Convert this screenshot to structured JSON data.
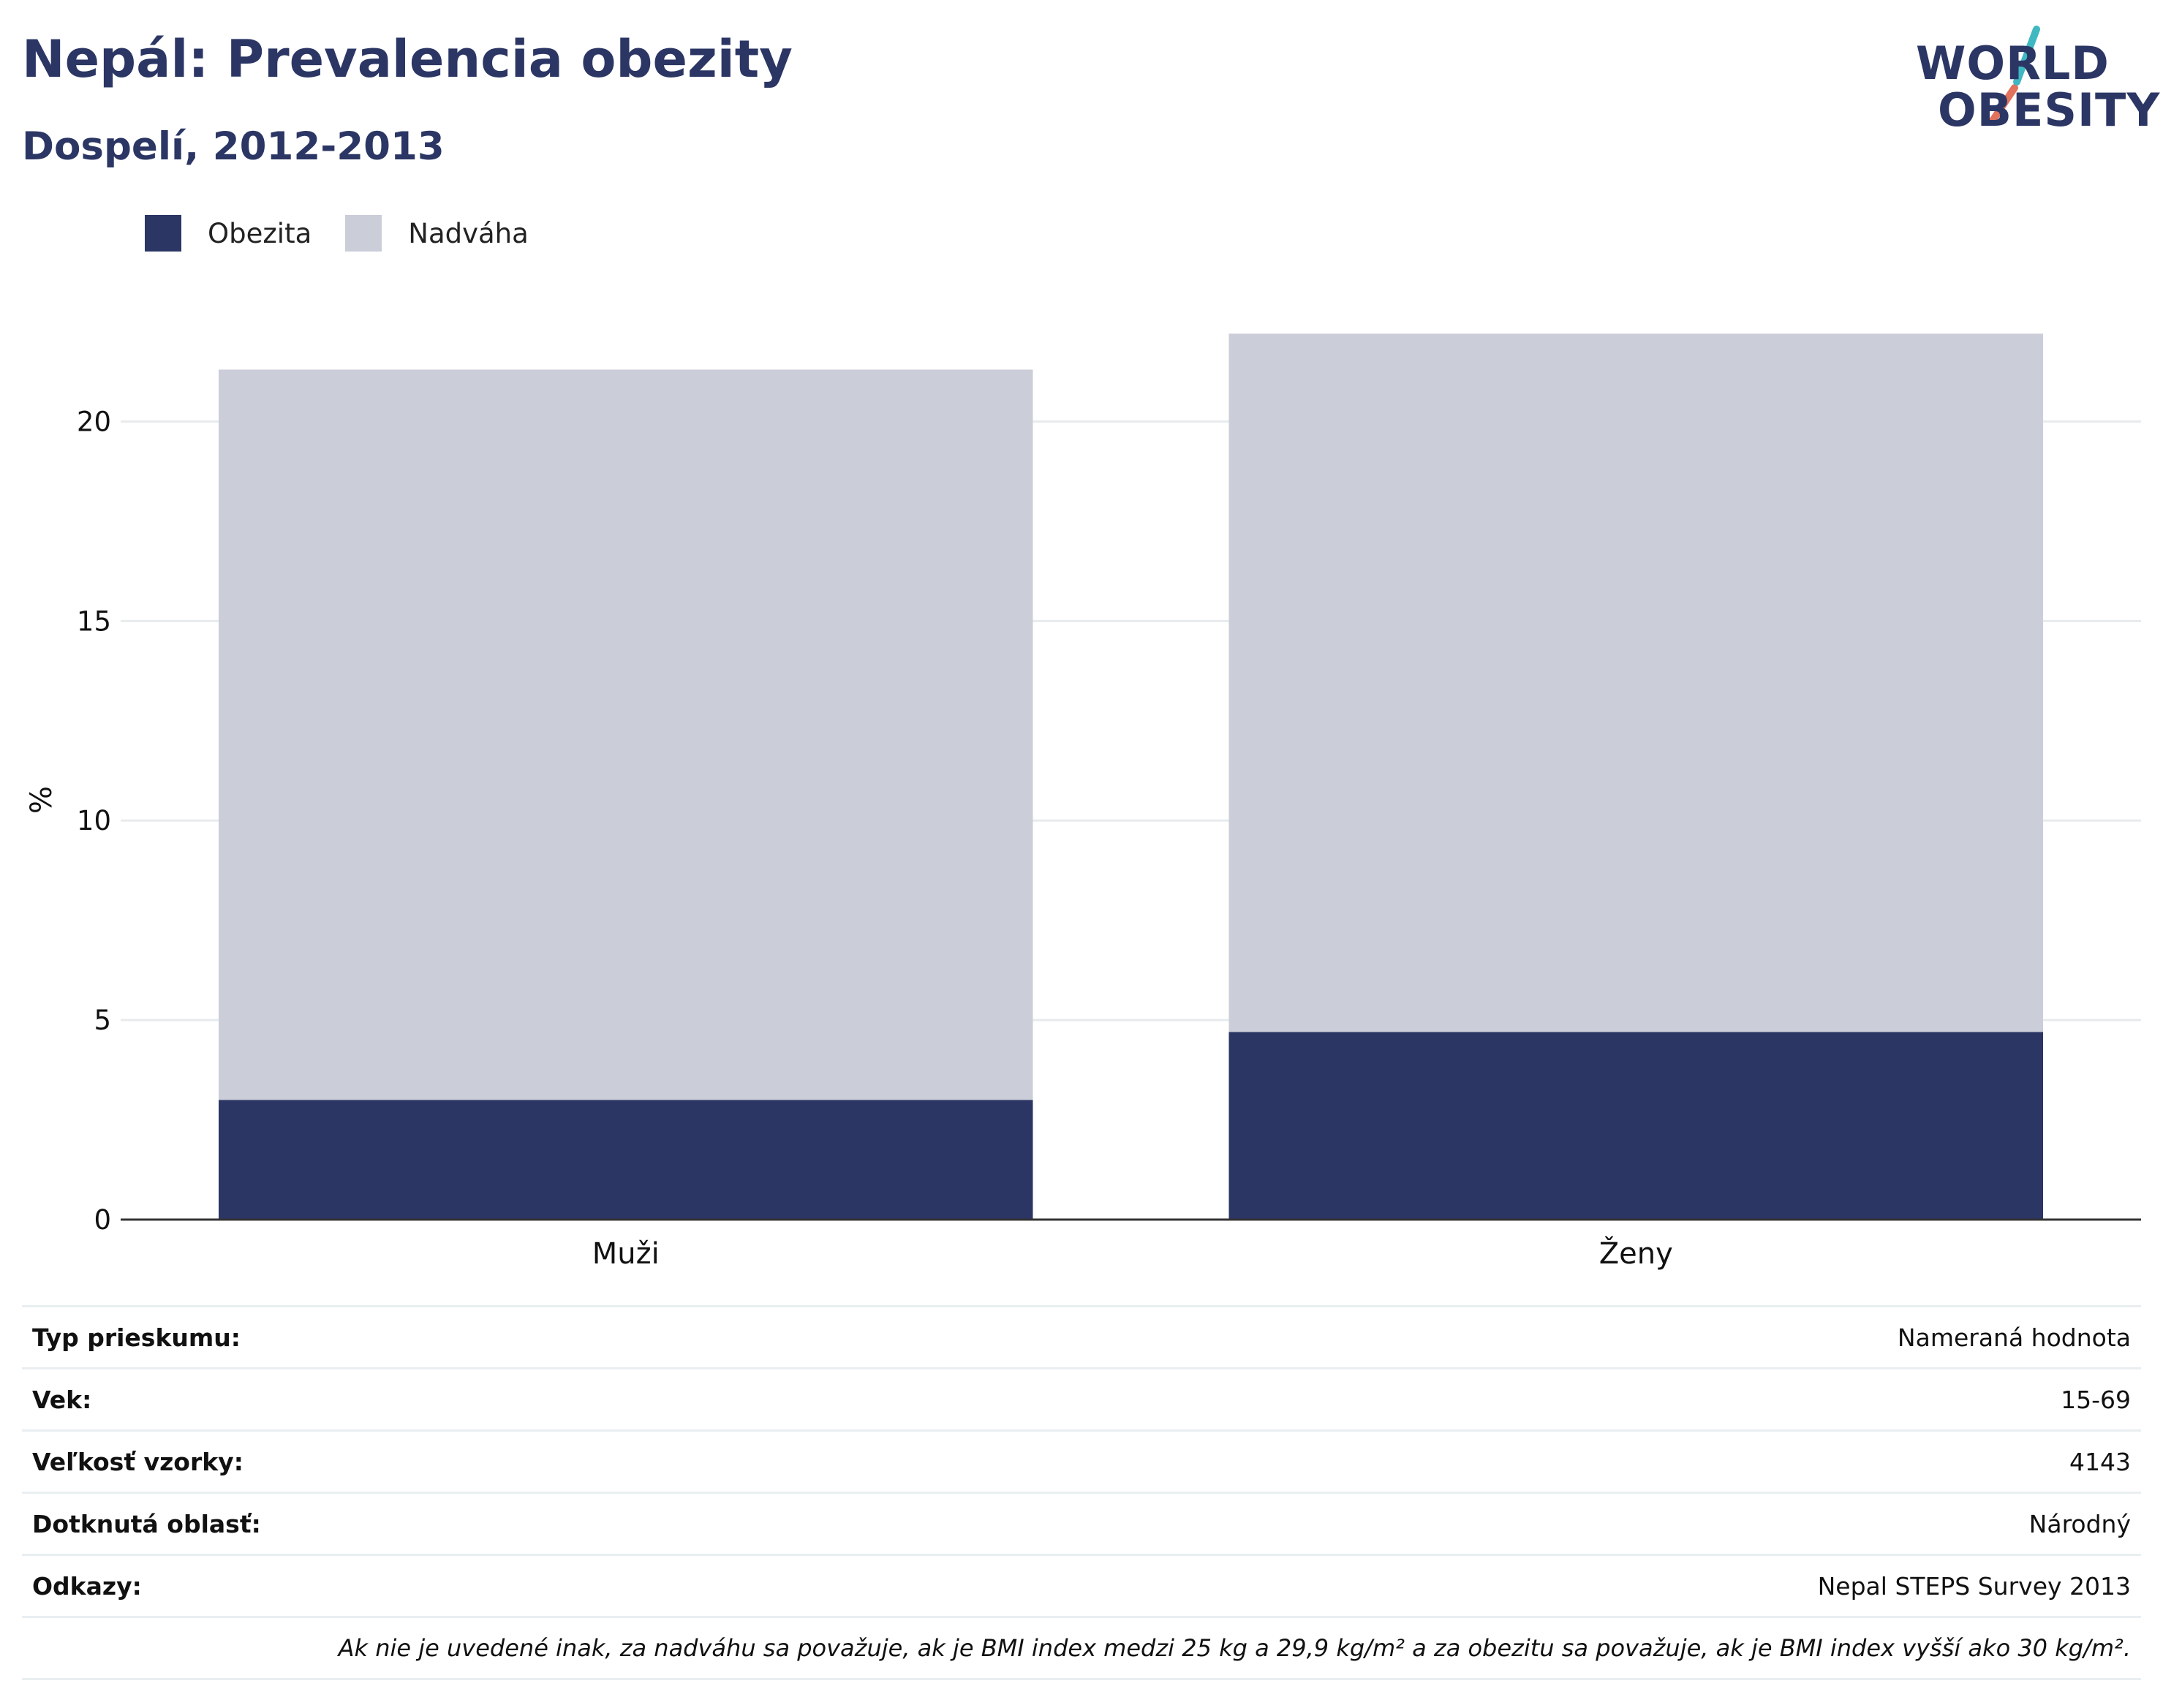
{
  "title": "Nepál: Prevalencia obezity",
  "subtitle": "Dospelí, 2012-2013",
  "logo": {
    "line1": "WORLD",
    "line2": "OBESITY"
  },
  "colors": {
    "obesity": "#2b3664",
    "overweight": "#cbcdd9",
    "title": "#2b3664",
    "grid": "#e8ebee"
  },
  "legend": [
    {
      "label": "Obezita",
      "color": "#2b3664"
    },
    {
      "label": "Nadváha",
      "color": "#cbcdd9"
    }
  ],
  "chart_data": {
    "type": "bar",
    "stacked": true,
    "categories": [
      "Muži",
      "Ženy"
    ],
    "series": [
      {
        "name": "Obezita",
        "values": [
          3.0,
          4.7
        ]
      },
      {
        "name": "Nadváha",
        "values": [
          18.3,
          17.5
        ]
      }
    ],
    "ylabel": "%",
    "ylim": [
      0,
      22.5
    ],
    "yticks": [
      0,
      5,
      10,
      15,
      20
    ],
    "grid": true,
    "legend_position": "top-left"
  },
  "info": [
    {
      "label": "Typ prieskumu:",
      "value": "Nameraná hodnota"
    },
    {
      "label": "Vek:",
      "value": "15-69"
    },
    {
      "label": "Veľkosť vzorky:",
      "value": "4143"
    },
    {
      "label": "Dotknutá oblasť:",
      "value": "Národný"
    },
    {
      "label": "Odkazy:",
      "value": "Nepal STEPS Survey 2013"
    }
  ],
  "note": "Ak nie je uvedené inak, za nadváhu sa považuje, ak je BMI index medzi 25 kg a 29,9 kg/m² a za obezitu sa považuje, ak je BMI index vyšší ako 30 kg/m²."
}
